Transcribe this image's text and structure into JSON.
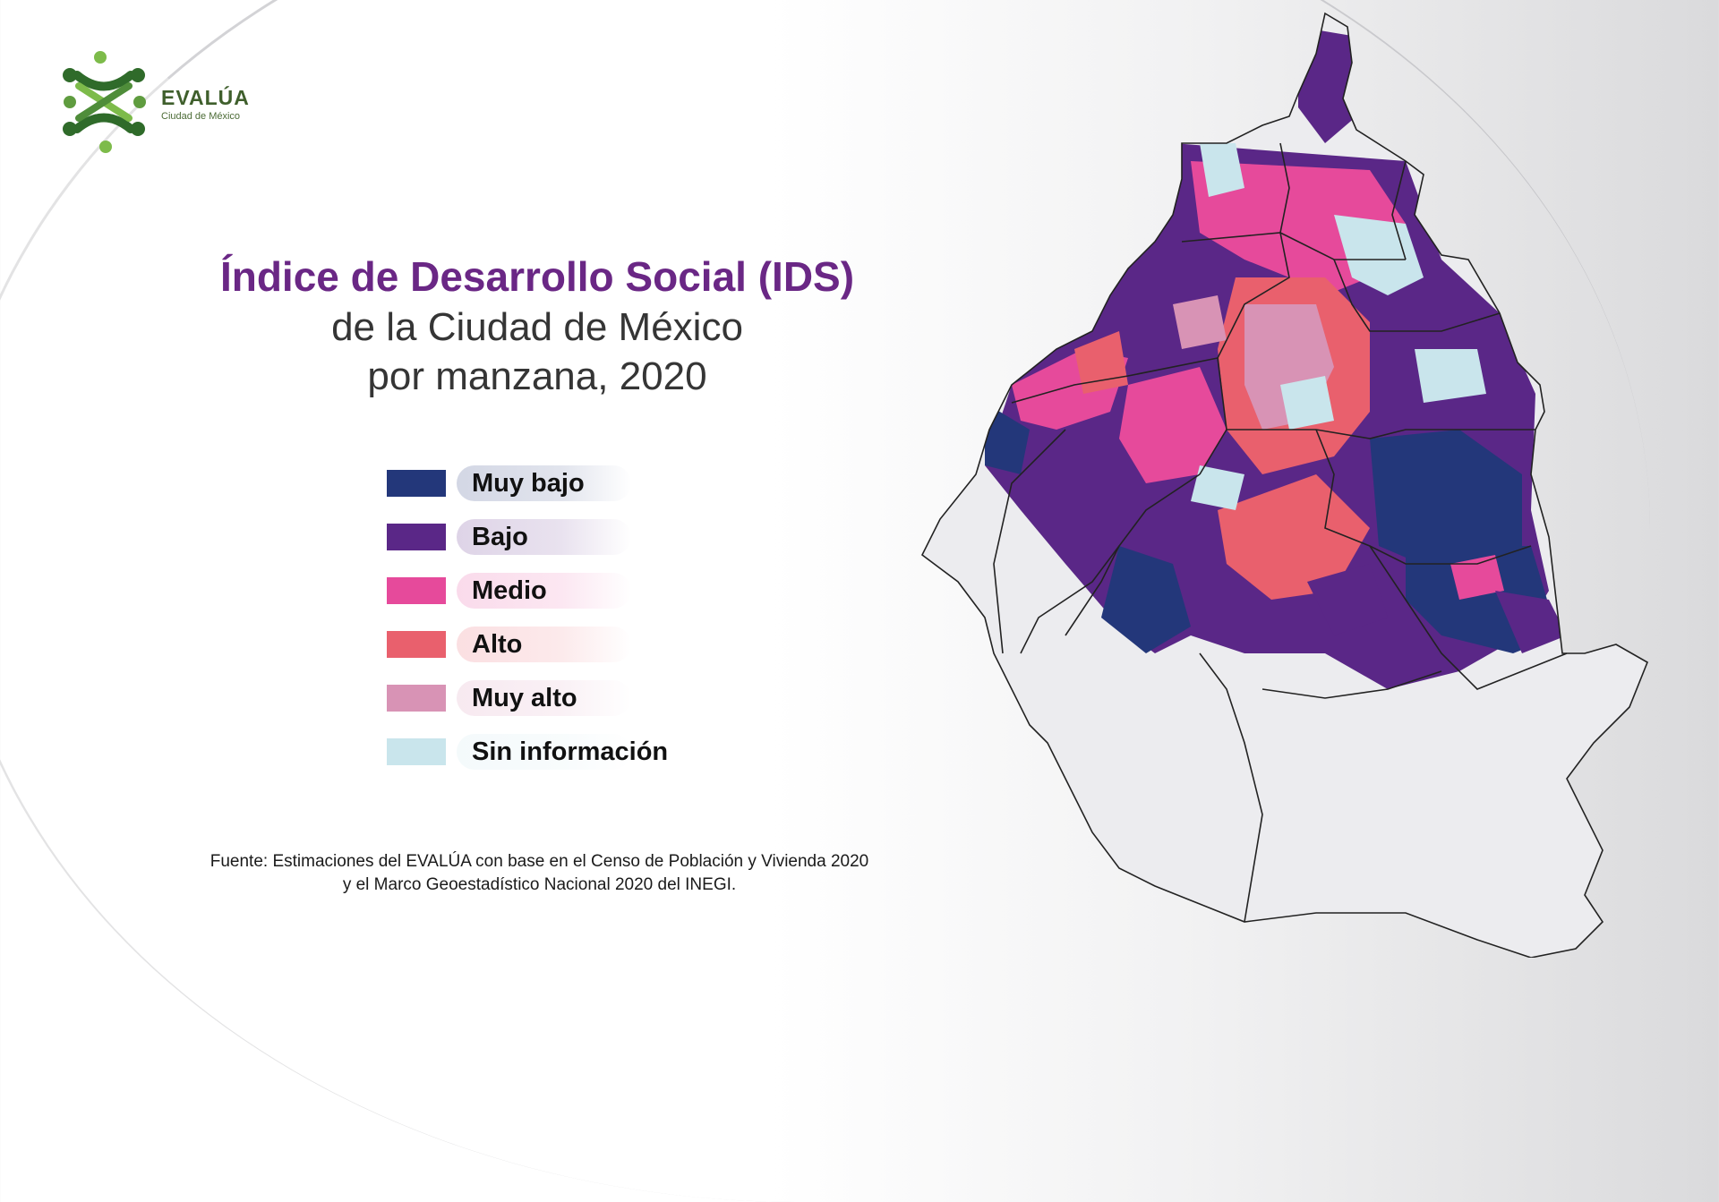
{
  "header": {
    "logo_title": "EVALÚA",
    "logo_subtitle": "Ciudad de México"
  },
  "title": {
    "line1": "Índice de Desarrollo Social (IDS)",
    "line2": "de la Ciudad de México",
    "line3": "por manzana, 2020"
  },
  "legend": [
    {
      "label": "Muy bajo",
      "color": "#23377a"
    },
    {
      "label": "Bajo",
      "color": "#5a2787"
    },
    {
      "label": "Medio",
      "color": "#e64a9b"
    },
    {
      "label": "Alto",
      "color": "#e9606d"
    },
    {
      "label": "Muy alto",
      "color": "#d893b5"
    },
    {
      "label": "Sin información",
      "color": "#c9e5ec"
    }
  ],
  "source": {
    "line1": "Fuente: Estimaciones del EVALÚA con base en el Censo de Población y Vivienda 2020",
    "line2": "y el Marco Geoestadístico Nacional 2020 del INEGI."
  },
  "map": {
    "base_color": "#ececef",
    "border_color": "#222222"
  }
}
